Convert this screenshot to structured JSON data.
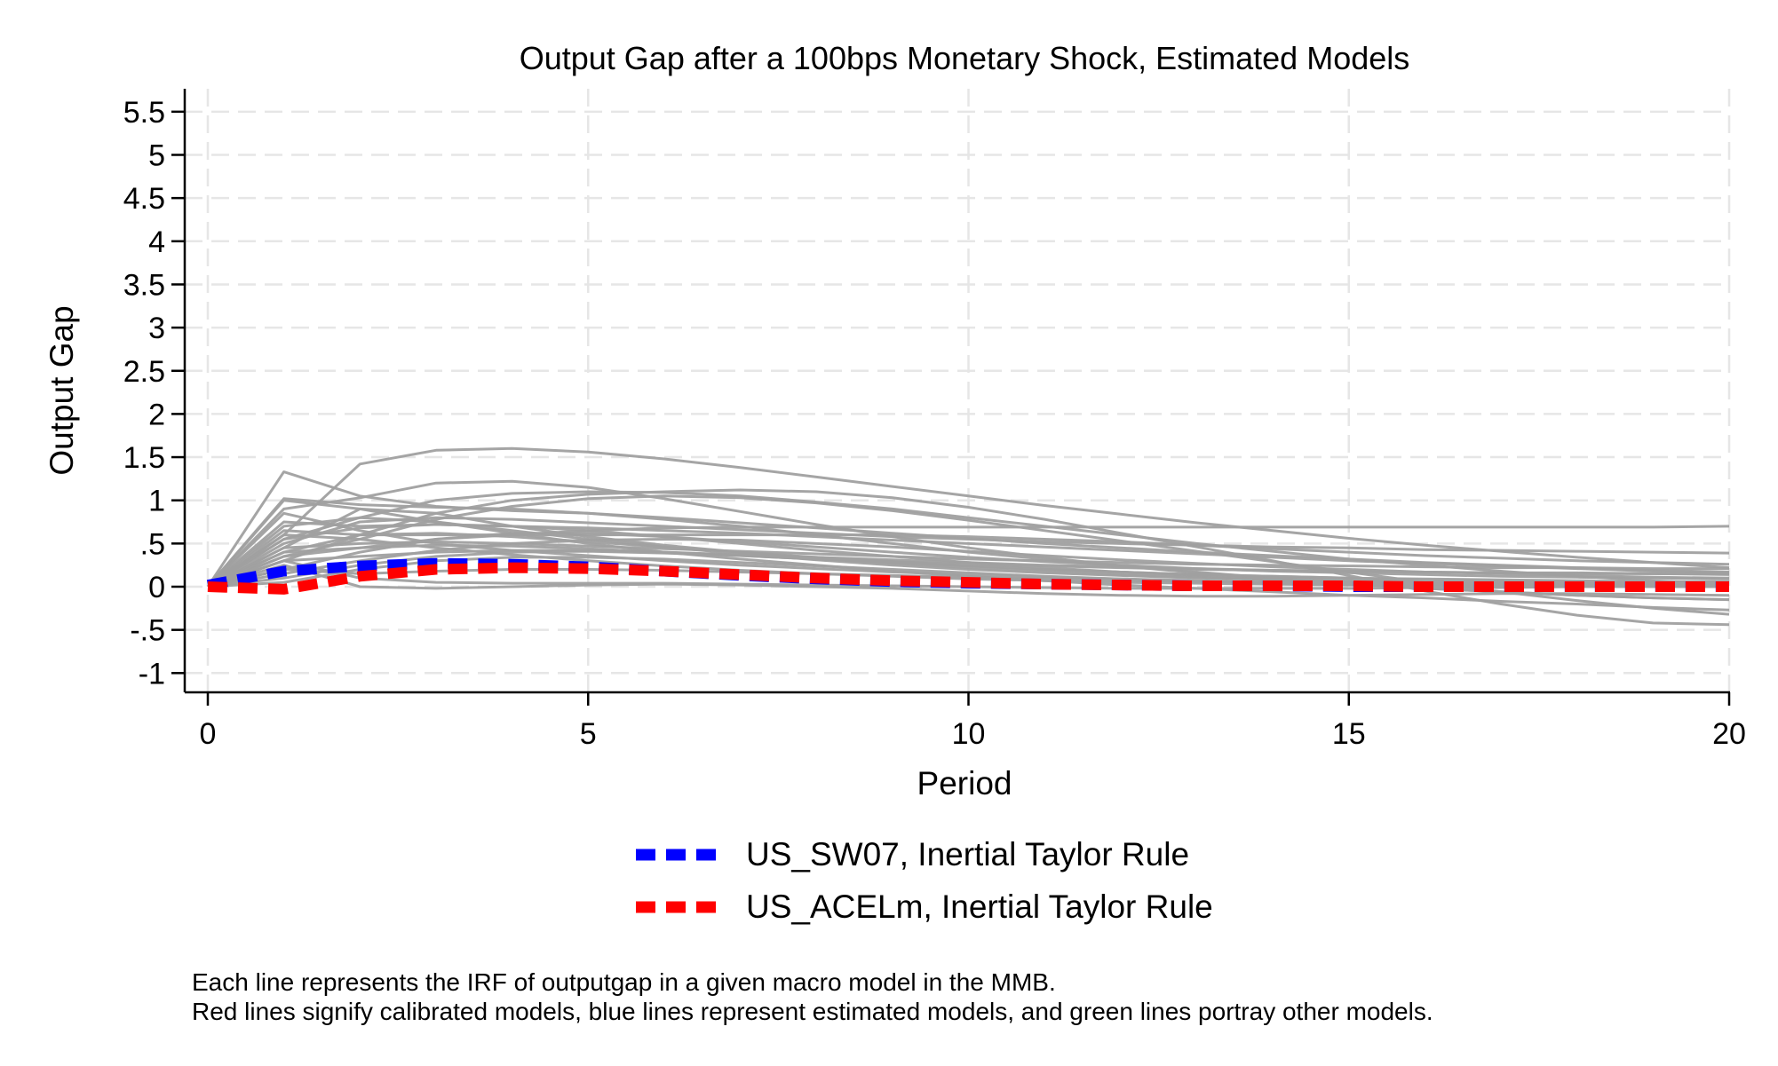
{
  "chart_data": {
    "type": "line",
    "title": "Output Gap after a 100bps Monetary Shock, Estimated Models",
    "xlabel": "Period",
    "ylabel": "Output Gap",
    "xlim": [
      0,
      20
    ],
    "ylim": [
      -1,
      5.5
    ],
    "x_ticks": [
      0,
      5,
      10,
      15,
      20
    ],
    "x_tick_labels": [
      "0",
      "5",
      "10",
      "15",
      "20"
    ],
    "y_ticks": [
      -1,
      -0.5,
      0,
      0.5,
      1,
      1.5,
      2,
      2.5,
      3,
      3.5,
      4,
      4.5,
      5,
      5.5
    ],
    "y_tick_labels": [
      "-1",
      "-.5",
      "0",
      ".5",
      "1",
      "1.5",
      "2",
      "2.5",
      "3",
      "3.5",
      "4",
      "4.5",
      "5",
      "5.5"
    ],
    "grid": true,
    "legend_position": "bottom",
    "x": [
      0,
      1,
      2,
      3,
      4,
      5,
      6,
      7,
      8,
      9,
      10,
      11,
      12,
      13,
      14,
      15,
      16,
      17,
      18,
      19,
      20
    ],
    "colors": {
      "background_series": "#a0a0a0",
      "highlight_blue": "#0000ff",
      "highlight_red": "#ff0000",
      "grid": "#e6e6e6",
      "axis": "#000000"
    },
    "background_series": [
      {
        "values": [
          0,
          1.33,
          1.05,
          0.93,
          0.88,
          0.85,
          0.8,
          0.74,
          0.68,
          0.62,
          0.56,
          0.5,
          0.45,
          0.4,
          0.36,
          0.32,
          0.28,
          0.25,
          0.22,
          0.19,
          0.17
        ]
      },
      {
        "values": [
          0,
          0.6,
          1.42,
          1.58,
          1.6,
          1.56,
          1.48,
          1.38,
          1.27,
          1.16,
          1.05,
          0.94,
          0.84,
          0.74,
          0.65,
          0.56,
          0.48,
          0.41,
          0.34,
          0.28,
          0.22
        ]
      },
      {
        "values": [
          0,
          1.02,
          0.95,
          0.92,
          0.9,
          0.85,
          0.78,
          0.7,
          0.6,
          0.5,
          0.4,
          0.32,
          0.24,
          0.17,
          0.1,
          0.04,
          -0.02,
          -0.06,
          -0.1,
          -0.13,
          -0.15
        ]
      },
      {
        "values": [
          0,
          0.9,
          1.03,
          1.2,
          1.22,
          1.15,
          1.02,
          0.87,
          0.72,
          0.58,
          0.45,
          0.34,
          0.24,
          0.16,
          0.09,
          0.03,
          -0.02,
          -0.06,
          -0.1,
          -0.13,
          -0.15
        ]
      },
      {
        "values": [
          0,
          0.55,
          0.8,
          1.0,
          1.08,
          1.1,
          1.09,
          1.05,
          0.98,
          0.9,
          0.8,
          0.7,
          0.6,
          0.5,
          0.41,
          0.32,
          0.25,
          0.18,
          0.12,
          0.07,
          0.03
        ]
      },
      {
        "values": [
          0,
          0.35,
          0.55,
          0.78,
          0.93,
          1.02,
          1.05,
          1.03,
          0.97,
          0.88,
          0.77,
          0.65,
          0.53,
          0.41,
          0.29,
          0.17,
          0.05,
          -0.06,
          -0.16,
          -0.25,
          -0.32
        ]
      },
      {
        "values": [
          0,
          0.3,
          0.6,
          0.85,
          1.0,
          1.07,
          1.1,
          1.12,
          1.1,
          1.03,
          0.92,
          0.78,
          0.62,
          0.46,
          0.3,
          0.13,
          -0.05,
          -0.2,
          -0.33,
          -0.42,
          -0.44
        ]
      },
      {
        "values": [
          0,
          0.5,
          0.75,
          0.8,
          0.78,
          0.74,
          0.7,
          0.66,
          0.62,
          0.58,
          0.55,
          0.52,
          0.5,
          0.48,
          0.46,
          0.45,
          0.43,
          0.42,
          0.41,
          0.4,
          0.39
        ]
      },
      {
        "values": [
          0,
          0.4,
          0.45,
          0.55,
          0.6,
          0.65,
          0.68,
          0.69,
          0.69,
          0.69,
          0.69,
          0.69,
          0.69,
          0.69,
          0.69,
          0.69,
          0.69,
          0.69,
          0.69,
          0.69,
          0.7
        ]
      },
      {
        "values": [
          0,
          1.0,
          0.9,
          0.75,
          0.62,
          0.5,
          0.4,
          0.32,
          0.25,
          0.18,
          0.12,
          0.07,
          0.02,
          -0.02,
          -0.06,
          -0.1,
          -0.13,
          -0.17,
          -0.2,
          -0.24,
          -0.27
        ]
      },
      {
        "values": [
          0,
          0.75,
          0.7,
          0.72,
          0.7,
          0.68,
          0.65,
          0.62,
          0.58,
          0.54,
          0.5,
          0.46,
          0.42,
          0.38,
          0.34,
          0.3,
          0.27,
          0.24,
          0.21,
          0.18,
          0.16
        ]
      },
      {
        "values": [
          0,
          0.65,
          0.6,
          0.6,
          0.6,
          0.6,
          0.6,
          0.6,
          0.6,
          0.6,
          0.58,
          0.55,
          0.52,
          0.48,
          0.44,
          0.4,
          0.36,
          0.33,
          0.3,
          0.28,
          0.26
        ]
      },
      {
        "values": [
          0,
          0.45,
          0.9,
          0.85,
          0.7,
          0.58,
          0.48,
          0.4,
          0.33,
          0.27,
          0.22,
          0.18,
          0.14,
          0.11,
          0.08,
          0.06,
          0.04,
          0.02,
          0.01,
          0.0,
          0.0
        ]
      },
      {
        "values": [
          0,
          0.55,
          0.68,
          0.72,
          0.7,
          0.65,
          0.58,
          0.5,
          0.42,
          0.35,
          0.28,
          0.22,
          0.17,
          0.13,
          0.1,
          0.08,
          0.06,
          0.05,
          0.04,
          0.03,
          0.03
        ]
      },
      {
        "values": [
          0,
          0.2,
          0.4,
          0.55,
          0.62,
          0.62,
          0.58,
          0.52,
          0.46,
          0.4,
          0.34,
          0.29,
          0.25,
          0.21,
          0.18,
          0.16,
          0.14,
          0.12,
          0.11,
          0.1,
          0.09
        ]
      },
      {
        "values": [
          0,
          0.85,
          0.65,
          0.5,
          0.42,
          0.36,
          0.3,
          0.25,
          0.21,
          0.17,
          0.14,
          0.11,
          0.09,
          0.07,
          0.05,
          0.04,
          0.03,
          0.02,
          0.02,
          0.01,
          0.01
        ]
      },
      {
        "values": [
          0,
          0.3,
          0.35,
          0.4,
          0.42,
          0.42,
          0.4,
          0.37,
          0.34,
          0.31,
          0.28,
          0.25,
          0.23,
          0.21,
          0.19,
          0.18,
          0.17,
          0.16,
          0.15,
          0.15,
          0.14
        ]
      },
      {
        "values": [
          0,
          0.1,
          0.25,
          0.35,
          0.4,
          0.41,
          0.39,
          0.36,
          0.32,
          0.28,
          0.24,
          0.2,
          0.17,
          0.14,
          0.12,
          0.1,
          0.08,
          0.07,
          0.06,
          0.05,
          0.05
        ]
      },
      {
        "values": [
          0,
          0.45,
          0.5,
          0.52,
          0.5,
          0.47,
          0.44,
          0.41,
          0.38,
          0.35,
          0.32,
          0.3,
          0.28,
          0.26,
          0.25,
          0.24,
          0.23,
          0.22,
          0.22,
          0.21,
          0.21
        ]
      },
      {
        "values": [
          0,
          0.05,
          0.2,
          0.3,
          0.34,
          0.34,
          0.32,
          0.28,
          0.24,
          0.2,
          0.16,
          0.12,
          0.09,
          0.06,
          0.04,
          0.02,
          0.01,
          0.0,
          0.0,
          0.0,
          0.0
        ]
      },
      {
        "values": [
          0,
          0.25,
          0.0,
          -0.02,
          0.0,
          0.02,
          0.03,
          0.02,
          0.0,
          -0.02,
          -0.05,
          -0.08,
          -0.1,
          -0.11,
          -0.11,
          -0.1,
          -0.09,
          -0.08,
          -0.08,
          -0.09,
          -0.1
        ]
      },
      {
        "values": [
          0,
          0.6,
          0.55,
          0.45,
          0.37,
          0.3,
          0.24,
          0.19,
          0.15,
          0.12,
          0.09,
          0.07,
          0.05,
          0.04,
          0.03,
          0.02,
          0.02,
          0.01,
          0.01,
          0.01,
          0.01
        ]
      },
      {
        "values": [
          0,
          0.3,
          0.1,
          0.05,
          0.04,
          0.04,
          0.04,
          0.03,
          0.02,
          0.01,
          0.0,
          -0.01,
          -0.02,
          -0.02,
          -0.02,
          -0.02,
          -0.01,
          -0.01,
          0.0,
          0.0,
          0.0
        ]
      },
      {
        "values": [
          0,
          0.7,
          0.8,
          0.75,
          0.65,
          0.55,
          0.46,
          0.38,
          0.31,
          0.25,
          0.2,
          0.16,
          0.13,
          0.1,
          0.08,
          0.06,
          0.05,
          0.04,
          0.03,
          0.03,
          0.02
        ]
      },
      {
        "values": [
          0,
          0.15,
          0.3,
          0.42,
          0.5,
          0.54,
          0.55,
          0.54,
          0.5,
          0.46,
          0.41,
          0.36,
          0.31,
          0.27,
          0.23,
          0.2,
          0.17,
          0.15,
          0.13,
          0.11,
          0.1
        ]
      },
      {
        "values": [
          0,
          0.4,
          0.6,
          0.62,
          0.58,
          0.52,
          0.46,
          0.4,
          0.34,
          0.29,
          0.24,
          0.2,
          0.17,
          0.14,
          0.12,
          0.1,
          0.09,
          0.08,
          0.07,
          0.06,
          0.06
        ]
      },
      {
        "values": [
          0,
          0.2,
          0.15,
          0.18,
          0.2,
          0.2,
          0.19,
          0.17,
          0.15,
          0.13,
          0.11,
          0.09,
          0.07,
          0.06,
          0.05,
          0.04,
          0.03,
          0.03,
          0.02,
          0.02,
          0.02
        ]
      },
      {
        "values": [
          0,
          0.35,
          0.45,
          0.48,
          0.47,
          0.44,
          0.4,
          0.36,
          0.32,
          0.29,
          0.26,
          0.24,
          0.22,
          0.2,
          0.19,
          0.18,
          0.17,
          0.16,
          0.16,
          0.15,
          0.15
        ]
      }
    ],
    "series": [
      {
        "name": "US_SW07, Inertial Taylor Rule",
        "color": "#0000ff",
        "values": [
          0.02,
          0.18,
          0.24,
          0.27,
          0.26,
          0.23,
          0.18,
          0.13,
          0.09,
          0.06,
          0.04,
          0.03,
          0.02,
          0.01,
          0.01,
          0.0,
          0.0,
          0.0,
          0.0,
          0.0,
          0.0
        ]
      },
      {
        "name": "US_ACELm, Inertial Taylor Rule",
        "color": "#ff0000",
        "values": [
          0.0,
          -0.03,
          0.12,
          0.2,
          0.22,
          0.21,
          0.18,
          0.14,
          0.1,
          0.07,
          0.05,
          0.03,
          0.02,
          0.01,
          0.01,
          0.01,
          0.0,
          0.0,
          0.0,
          0.0,
          0.0
        ]
      }
    ],
    "notes": [
      "Each line represents the IRF of outputgap in a given macro model in the MMB.",
      "Red lines signify calibrated models, blue lines represent estimated models, and green lines portray other models."
    ]
  }
}
